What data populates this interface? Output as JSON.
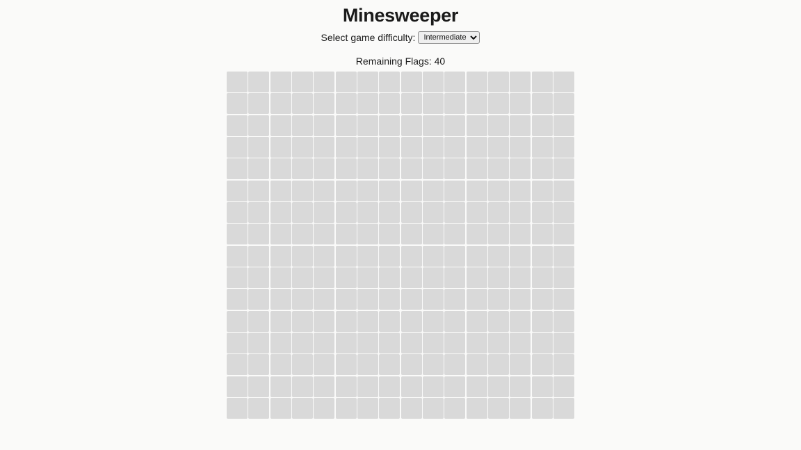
{
  "header": {
    "title": "Minesweeper"
  },
  "difficulty": {
    "label": "Select game difficulty:",
    "selected": "Intermediate",
    "options": [
      "Intermediate"
    ]
  },
  "status": {
    "flags_label": "Remaining Flags:",
    "flags_count": 40
  },
  "board": {
    "rows": 16,
    "cols": 16,
    "cell_color": "#d9d9d9",
    "state": "all-unrevealed"
  }
}
